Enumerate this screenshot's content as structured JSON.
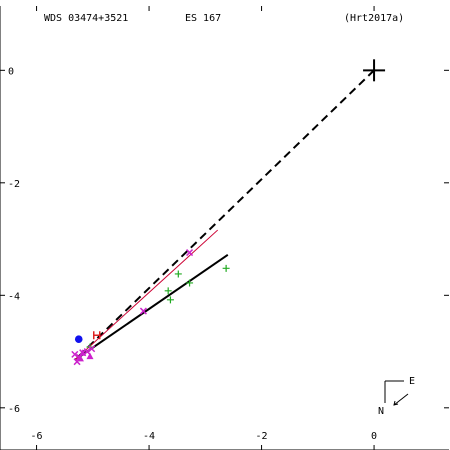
{
  "header": {
    "wds_id": "WDS 03474+3521",
    "discoverer": "ES  167",
    "reference": "(Hrt2017a)"
  },
  "compass": {
    "east_label": "E",
    "north_label": "N"
  },
  "colors": {
    "axes": "#000000",
    "fitted_orbit": "#000000",
    "previous_orbit": "#cc0033",
    "plus_points": "#22aa22",
    "cross_points": "#cc22cc",
    "dot_point": "#1111ee",
    "h_point": "#dd2222"
  },
  "chart_data": {
    "type": "scatter",
    "title": "",
    "xlabel": "",
    "ylabel": "",
    "xlim": [
      -6.65,
      1.35
    ],
    "ylim": [
      1.25,
      -6.75
    ],
    "x_ticks": [
      -6,
      -4,
      -2,
      0
    ],
    "y_ticks": [
      0,
      -2,
      -4,
      -6
    ],
    "primary_star": {
      "x": 0.0,
      "y": 0.0
    },
    "series": [
      {
        "marker": "plus",
        "color_key": "plus_points",
        "points": [
          {
            "x": -2.63,
            "y": -3.52
          },
          {
            "x": -3.28,
            "y": -3.78
          },
          {
            "x": -3.62,
            "y": -4.08
          },
          {
            "x": -3.66,
            "y": -3.92
          },
          {
            "x": -3.48,
            "y": -3.62
          },
          {
            "x": -5.05,
            "y": -4.92
          }
        ]
      },
      {
        "marker": "cross",
        "color_key": "cross_points",
        "points": [
          {
            "x": -3.28,
            "y": -3.24
          },
          {
            "x": -4.1,
            "y": -4.28
          },
          {
            "x": -5.02,
            "y": -4.95
          },
          {
            "x": -5.1,
            "y": -5.0
          },
          {
            "x": -5.18,
            "y": -5.02
          },
          {
            "x": -5.24,
            "y": -5.1
          },
          {
            "x": -5.28,
            "y": -5.18
          },
          {
            "x": -5.32,
            "y": -5.05
          }
        ]
      },
      {
        "marker": "triangle",
        "color_key": "cross_points",
        "points": [
          {
            "x": -5.05,
            "y": -5.08
          },
          {
            "x": -5.18,
            "y": -5.02
          },
          {
            "x": -5.22,
            "y": -5.12
          }
        ]
      },
      {
        "marker": "dot",
        "color_key": "dot_point",
        "points": [
          {
            "x": -5.25,
            "y": -4.78
          }
        ]
      },
      {
        "marker": "H",
        "color_key": "h_point",
        "points": [
          {
            "x": -4.93,
            "y": -4.71
          }
        ]
      }
    ],
    "lines": [
      {
        "style": "dashed",
        "color_key": "axes",
        "width": 2,
        "from": {
          "x": 0.0,
          "y": 0.0
        },
        "to": {
          "x": -5.32,
          "y": -5.15
        }
      },
      {
        "style": "solid",
        "color_key": "fitted_orbit",
        "width": 2,
        "from": {
          "x": -5.32,
          "y": -5.15
        },
        "to": {
          "x": -2.6,
          "y": -3.28
        }
      },
      {
        "style": "solid",
        "color_key": "previous_orbit",
        "width": 1,
        "from": {
          "x": -5.32,
          "y": -5.15
        },
        "to": {
          "x": -2.78,
          "y": -2.84
        }
      }
    ]
  }
}
